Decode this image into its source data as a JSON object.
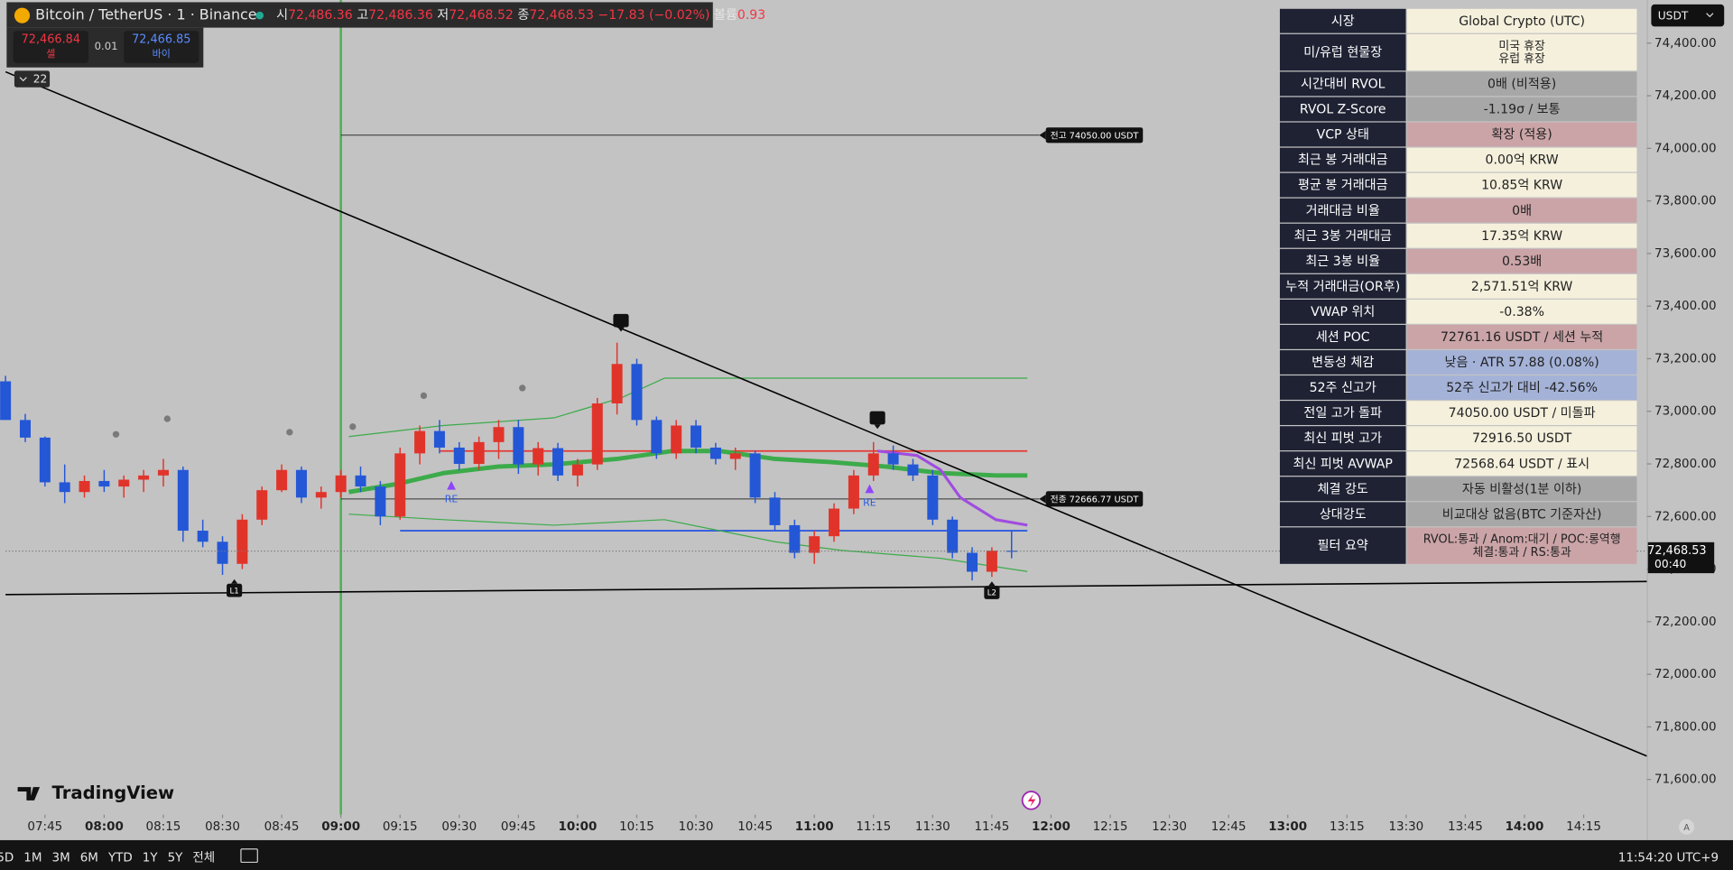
{
  "chart_data": {
    "type": "candlestick",
    "x": [
      455,
      460,
      465,
      470,
      475,
      480,
      485,
      490,
      495,
      500,
      505,
      510,
      515,
      520,
      525,
      530,
      535,
      540,
      545,
      550,
      555,
      560,
      565,
      570,
      575,
      580,
      585,
      590,
      595,
      600,
      605,
      610,
      615,
      620,
      625,
      630,
      635,
      640,
      645,
      650,
      655,
      660,
      665,
      670,
      675,
      680,
      685,
      690,
      695,
      700,
      705,
      710
    ],
    "open": [
      73114,
      72967,
      72900,
      72730,
      72693,
      72735,
      72714,
      72740,
      72756,
      72777,
      72546,
      72504,
      72420,
      72588,
      72700,
      72777,
      72672,
      72693,
      72756,
      72714,
      72600,
      72840,
      72925,
      72862,
      72800,
      72883,
      72940,
      72798,
      72860,
      72756,
      72798,
      73030,
      73180,
      72967,
      72840,
      72946,
      72862,
      72819,
      72840,
      72672,
      72567,
      72462,
      72525,
      72630,
      72756,
      72840,
      72798,
      72756,
      72588,
      72462,
      72390,
      72470
    ],
    "high": [
      73135,
      72990,
      72904,
      72798,
      72756,
      72777,
      72756,
      72777,
      72819,
      72790,
      72588,
      72525,
      72609,
      72714,
      72798,
      72790,
      72714,
      72777,
      72790,
      72735,
      72862,
      72946,
      72967,
      72883,
      72904,
      72967,
      72967,
      72883,
      72880,
      72819,
      73051,
      73261,
      73200,
      72980,
      72967,
      72967,
      72880,
      72862,
      72850,
      72693,
      72588,
      72546,
      72650,
      72777,
      72883,
      72870,
      72819,
      72777,
      72600,
      72483,
      72483,
      72546
    ],
    "low": [
      72967,
      72883,
      72714,
      72651,
      72672,
      72693,
      72672,
      72693,
      72714,
      72504,
      72483,
      72378,
      72400,
      72567,
      72693,
      72651,
      72630,
      72672,
      72693,
      72567,
      72588,
      72798,
      72840,
      72777,
      72777,
      72819,
      72762,
      72756,
      72735,
      72714,
      72777,
      72988,
      72946,
      72819,
      72819,
      72840,
      72798,
      72777,
      72651,
      72546,
      72441,
      72420,
      72504,
      72609,
      72735,
      72777,
      72735,
      72567,
      72441,
      72357,
      72370,
      72441
    ],
    "close": [
      72967,
      72900,
      72730,
      72693,
      72735,
      72714,
      72740,
      72756,
      72777,
      72546,
      72504,
      72420,
      72588,
      72700,
      72777,
      72672,
      72693,
      72756,
      72714,
      72600,
      72840,
      72925,
      72862,
      72800,
      72883,
      72940,
      72798,
      72860,
      72756,
      72798,
      73030,
      73180,
      72967,
      72840,
      72946,
      72862,
      72819,
      72840,
      72672,
      72567,
      72462,
      72525,
      72630,
      72756,
      72840,
      72798,
      72756,
      72588,
      72462,
      72390,
      72470,
      72468.53
    ],
    "up_color": "#e0342b",
    "down_color": "#2457d6",
    "xlim": [
      455,
      871
    ],
    "ylim": [
      71466,
      74564
    ],
    "xticks": [
      {
        "value": 465,
        "label": "07:45"
      },
      {
        "value": 480,
        "label": "08:00"
      },
      {
        "value": 495,
        "label": "08:15"
      },
      {
        "value": 510,
        "label": "08:30"
      },
      {
        "value": 525,
        "label": "08:45"
      },
      {
        "value": 540,
        "label": "09:00"
      },
      {
        "value": 555,
        "label": "09:15"
      },
      {
        "value": 570,
        "label": "09:30"
      },
      {
        "value": 585,
        "label": "09:45"
      },
      {
        "value": 600,
        "label": "10:00"
      },
      {
        "value": 615,
        "label": "10:15"
      },
      {
        "value": 630,
        "label": "10:30"
      },
      {
        "value": 645,
        "label": "10:45"
      },
      {
        "value": 660,
        "label": "11:00"
      },
      {
        "value": 675,
        "label": "11:15"
      },
      {
        "value": 690,
        "label": "11:30"
      },
      {
        "value": 705,
        "label": "11:45"
      },
      {
        "value": 720,
        "label": "12:00"
      },
      {
        "value": 735,
        "label": "12:15"
      },
      {
        "value": 750,
        "label": "12:30"
      },
      {
        "value": 765,
        "label": "12:45"
      },
      {
        "value": 780,
        "label": "13:00"
      },
      {
        "value": 795,
        "label": "13:15"
      },
      {
        "value": 810,
        "label": "13:30"
      },
      {
        "value": 825,
        "label": "13:45"
      },
      {
        "value": 840,
        "label": "14:00"
      },
      {
        "value": 855,
        "label": "14:15"
      }
    ],
    "yticks": [
      {
        "value": 71600,
        "label": "71,600.00"
      },
      {
        "value": 71800,
        "label": "71,800.00"
      },
      {
        "value": 72000,
        "label": "72,000.00"
      },
      {
        "value": 72200,
        "label": "72,200.00"
      },
      {
        "value": 72400,
        "label": "72,400.00"
      },
      {
        "value": 72600,
        "label": "72,600.00"
      },
      {
        "value": 72800,
        "label": "72,800.00"
      },
      {
        "value": 73000,
        "label": "73,000.00"
      },
      {
        "value": 73200,
        "label": "73,200.00"
      },
      {
        "value": 73400,
        "label": "73,400.00"
      },
      {
        "value": 73600,
        "label": "73,600.00"
      },
      {
        "value": 73800,
        "label": "73,800.00"
      },
      {
        "value": 74000,
        "label": "74,000.00"
      },
      {
        "value": 74200,
        "label": "74,200.00"
      },
      {
        "value": 74400,
        "label": "74,400.00"
      }
    ],
    "currency": "USDT",
    "last_price": {
      "value": 72468.53,
      "label": "72,468.53"
    },
    "countdown": "00:40",
    "session_start": 540,
    "levels": [
      {
        "label": "전고 74050.00 USDT",
        "value": 74050,
        "from": 540,
        "to": 717
      },
      {
        "label": "전종 72666.77 USDT",
        "value": 72666.77,
        "from": 540,
        "to": 717
      }
    ],
    "hlines": [
      {
        "value": 72849,
        "from": 565,
        "to": 714,
        "color": "#e53935"
      },
      {
        "value": 72546,
        "from": 555,
        "to": 714,
        "color": "#2f5be0"
      }
    ],
    "overlays": [
      {
        "color": "#3cab4a",
        "width": 4,
        "x": [
          542,
          554,
          566,
          580,
          594,
          610,
          624,
          636,
          650,
          664,
          678,
          692,
          706,
          714
        ],
        "values": [
          72693,
          72723,
          72765,
          72790,
          72798,
          72819,
          72849,
          72849,
          72819,
          72807,
          72790,
          72765,
          72756,
          72756
        ]
      },
      {
        "color": "#3cab4a",
        "width": 1,
        "x": [
          542,
          566,
          594,
          611,
          622,
          650,
          678,
          714
        ],
        "values": [
          72904,
          72946,
          72975,
          73051,
          73126,
          73126,
          73126,
          73126
        ]
      },
      {
        "color": "#3cab4a",
        "width": 1,
        "x": [
          542,
          566,
          594,
          622,
          650,
          667,
          692,
          714
        ],
        "values": [
          72609,
          72588,
          72567,
          72588,
          72504,
          72471,
          72441,
          72391
        ]
      },
      {
        "color": "#a04ce0",
        "width": 2.5,
        "x": [
          676,
          686,
          692,
          697,
          706,
          714
        ],
        "values": [
          72849,
          72832,
          72777,
          72672,
          72588,
          72567
        ]
      }
    ],
    "trendlines": [
      {
        "color": "#000000",
        "x": [
          455,
          871
        ],
        "values": [
          74291,
          71689
        ]
      },
      {
        "color": "#000000",
        "x": [
          455,
          871
        ],
        "values": [
          72303,
          72353
        ]
      }
    ],
    "markers": [
      {
        "label": "L1",
        "x": 513,
        "value": 72378
      },
      {
        "label": "L2",
        "x": 705,
        "value": 72370
      }
    ],
    "signals": [
      {
        "label": "RE",
        "x": 568,
        "value": 72664
      },
      {
        "label": "RE",
        "x": 674,
        "value": 72651
      }
    ],
    "pivot_highs": {
      "x": [
        611,
        676
      ],
      "values": [
        73261,
        72891
      ]
    },
    "dots": {
      "x": [
        483,
        496,
        527,
        543,
        561,
        586
      ],
      "values": [
        72862,
        72921,
        72870,
        72891,
        73009,
        73038
      ]
    }
  },
  "header": {
    "symbol": "Bitcoin / TetherUS · 1 · Binance",
    "ohlc": [
      {
        "label": "시",
        "value": "72,486.36"
      },
      {
        "label": "고",
        "value": "72,486.36"
      },
      {
        "label": "저",
        "value": "72,468.52"
      },
      {
        "label": "종",
        "value": "72,468.53"
      }
    ],
    "change": "−17.83 (−0.02%)",
    "volume_label": "볼륨",
    "volume": "0.93",
    "sell": {
      "price": "72,466.84",
      "label": "셀"
    },
    "spread": "0.01",
    "buy": {
      "price": "72,466.85",
      "label": "바이"
    },
    "indicators": "22"
  },
  "panel": {
    "rows": [
      {
        "label": "시장",
        "value": "Global Crypto (UTC)",
        "bg": "#f5f0dc"
      },
      {
        "label": "미/유럽 현물장",
        "value": [
          "미국 휴장",
          "유럽 휴장"
        ],
        "bg": "#f5f0dc"
      },
      {
        "label": "시간대비 RVOL",
        "value": "0배 (비적용)",
        "bg": "#a7a7a7"
      },
      {
        "label": "RVOL Z-Score",
        "value": "-1.19σ / 보통",
        "bg": "#a7a7a7"
      },
      {
        "label": "VCP 상태",
        "value": "확장 (적용)",
        "bg": "#cba4a7"
      },
      {
        "label": "최근 봉 거래대금",
        "value": "0.00억 KRW",
        "bg": "#f5f0dc"
      },
      {
        "label": "평균 봉 거래대금",
        "value": "10.85억 KRW",
        "bg": "#f5f0dc"
      },
      {
        "label": "거래대금 비율",
        "value": "0배",
        "bg": "#cba4a7"
      },
      {
        "label": "최근 3봉 거래대금",
        "value": "17.35억 KRW",
        "bg": "#f5f0dc"
      },
      {
        "label": "최근 3봉 비율",
        "value": "0.53배",
        "bg": "#cba4a7"
      },
      {
        "label": "누적 거래대금(OR후)",
        "value": "2,571.51억 KRW",
        "bg": "#f5f0dc"
      },
      {
        "label": "VWAP 위치",
        "value": "-0.38%",
        "bg": "#f5f0dc"
      },
      {
        "label": "세션 POC",
        "value": "72761.16 USDT / 세션 누적",
        "bg": "#cba4a7"
      },
      {
        "label": "변동성 체감",
        "value": "낮음 · ATR 57.88 (0.08%)",
        "bg": "#a4b2d8"
      },
      {
        "label": "52주 신고가",
        "value": "52주 신고가 대비 -42.56%",
        "bg": "#a4b2d8"
      },
      {
        "label": "전일 고가 돌파",
        "value": "74050.00 USDT / 미돌파",
        "bg": "#f5f0dc"
      },
      {
        "label": "최신 피벗 고가",
        "value": "72916.50 USDT",
        "bg": "#f5f0dc"
      },
      {
        "label": "최신 피벗 AVWAP",
        "value": "72568.64 USDT / 표시",
        "bg": "#f5f0dc"
      },
      {
        "label": "체결 강도",
        "value": "자동 비활성(1분 이하)",
        "bg": "#a7a7a7"
      },
      {
        "label": "상대강도",
        "value": "비교대상 없음(BTC 기준자산)",
        "bg": "#a7a7a7"
      },
      {
        "label": "필터 요약",
        "value": [
          "RVOL:통과 / Anom:대기 / POC:롱역행",
          "체결:통과 / RS:통과"
        ],
        "bg": "#cba4a7"
      }
    ]
  },
  "logo": "TradingView",
  "toolbar": {
    "ranges": [
      "5D",
      "1M",
      "3M",
      "6M",
      "YTD",
      "1Y",
      "5Y",
      "전체"
    ],
    "clock": "11:54:20 UTC+9",
    "auto": "A"
  }
}
